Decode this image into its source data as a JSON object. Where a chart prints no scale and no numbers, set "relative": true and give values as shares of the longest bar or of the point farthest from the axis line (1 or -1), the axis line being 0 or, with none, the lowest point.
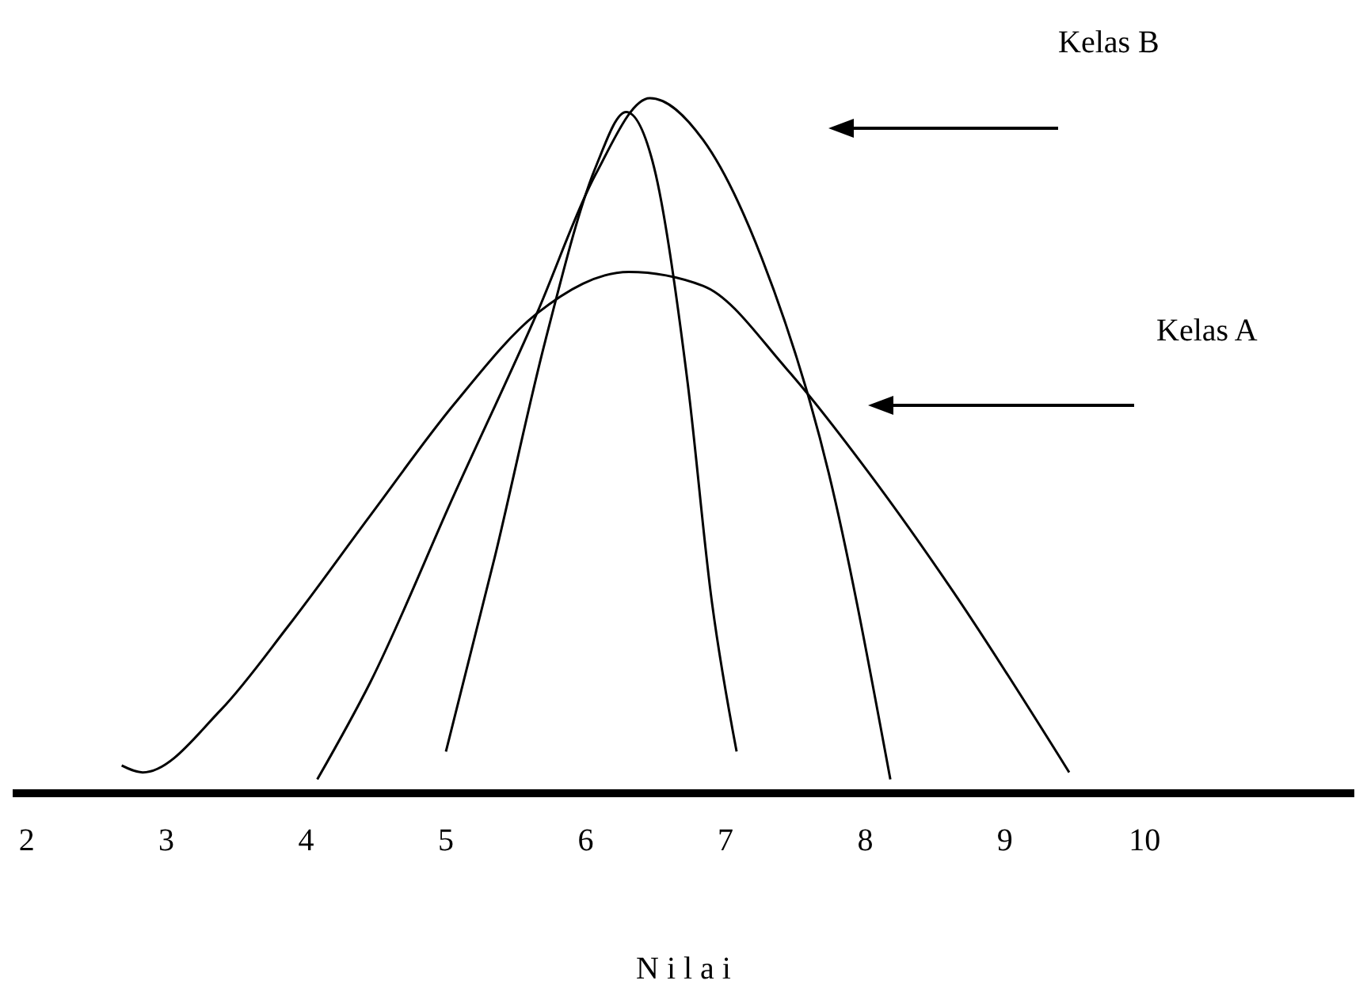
{
  "chart_data": {
    "type": "line",
    "relative": true,
    "xlabel": "N i l a i",
    "annotations": [
      "Kelas B",
      "Kelas A"
    ],
    "xlim": [
      1.9,
      11.5
    ],
    "xticks": [
      2,
      3,
      4,
      5,
      6,
      7,
      8,
      9,
      10
    ],
    "tick_labels": "x",
    "marker": "none",
    "line_style": "solid",
    "series": [
      {
        "color": "#000000",
        "x": [
          2.68,
          2.83,
          3.39,
          3.87,
          4.46,
          5.06,
          5.65,
          6.31,
          6.84,
          7.44,
          8.03,
          8.63,
          9.46
        ],
        "values": [
          0.04,
          0.03,
          0.12,
          0.24,
          0.4,
          0.56,
          0.69,
          0.75,
          0.73,
          0.61,
          0.46,
          0.29,
          0.03
        ]
      },
      {
        "color": "#000000",
        "x": [
          4.08,
          4.46,
          5.06,
          5.65,
          6.07,
          6.46,
          6.84,
          7.26,
          7.74,
          8.18
        ],
        "values": [
          0.02,
          0.16,
          0.43,
          0.69,
          0.89,
          1,
          0.94,
          0.77,
          0.46,
          0.02
        ]
      },
      {
        "color": "#000000",
        "x": [
          5.0,
          5.35,
          5.71,
          6.07,
          6.29,
          6.49,
          6.73,
          6.9,
          7.08
        ],
        "values": [
          0.06,
          0.34,
          0.65,
          0.9,
          0.98,
          0.9,
          0.59,
          0.28,
          0.06
        ]
      }
    ]
  }
}
